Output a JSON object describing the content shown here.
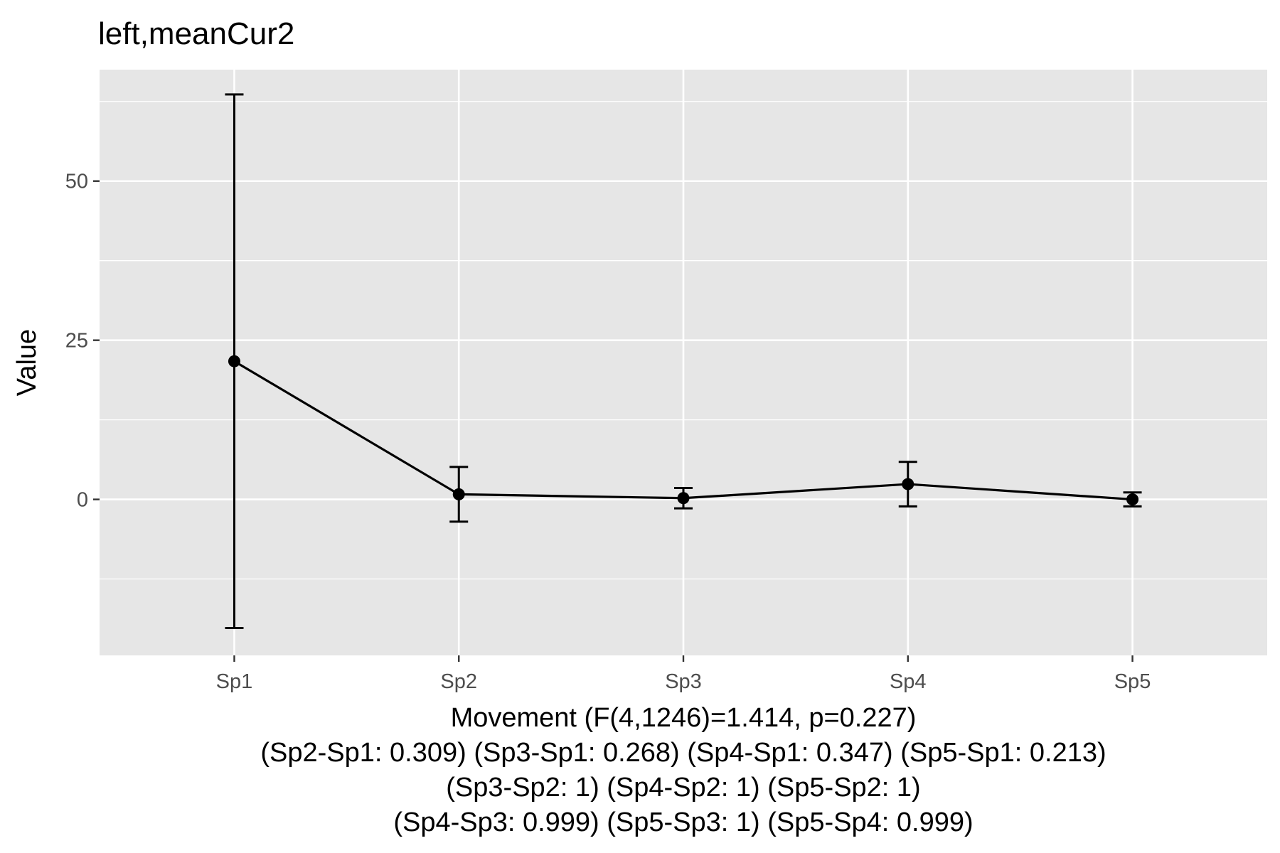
{
  "chart_data": {
    "type": "line",
    "title": "left,meanCur2",
    "ylabel": "Value",
    "xlabel_lines": [
      "Movement (F(4,1246)=1.414, p=0.227)",
      "(Sp2-Sp1: 0.309) (Sp3-Sp1: 0.268) (Sp4-Sp1: 0.347) (Sp5-Sp1: 0.213)",
      "(Sp3-Sp2: 1) (Sp4-Sp2: 1) (Sp5-Sp2: 1)",
      "(Sp4-Sp3: 0.999) (Sp5-Sp3: 1) (Sp5-Sp4: 0.999)"
    ],
    "categories": [
      "Sp1",
      "Sp2",
      "Sp3",
      "Sp4",
      "Sp5"
    ],
    "values": [
      21.7,
      0.8,
      0.2,
      2.4,
      0.0
    ],
    "error_lower": [
      -20.2,
      -3.5,
      -1.4,
      -1.1,
      -1.1
    ],
    "error_upper": [
      63.6,
      5.1,
      1.8,
      5.9,
      1.1
    ],
    "ylim": [
      -24.5,
      67.5
    ],
    "yticks": [
      0,
      25,
      50
    ],
    "grid": true,
    "panel_color": "#e6e6e6",
    "grid_color": "#ffffff",
    "line_color": "#000000",
    "point_color": "#000000"
  }
}
